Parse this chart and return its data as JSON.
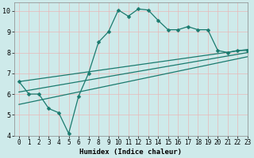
{
  "xlabel": "Humidex (Indice chaleur)",
  "background_color": "#ceeaea",
  "line_color": "#1a7a6e",
  "xlim": [
    -0.5,
    23
  ],
  "ylim": [
    4,
    10.4
  ],
  "xticks": [
    0,
    1,
    2,
    3,
    4,
    5,
    6,
    7,
    8,
    9,
    10,
    11,
    12,
    13,
    14,
    15,
    16,
    17,
    18,
    19,
    20,
    21,
    22,
    23
  ],
  "yticks": [
    4,
    5,
    6,
    7,
    8,
    9,
    10
  ],
  "wavy_series": {
    "x": [
      0,
      1,
      2,
      3,
      4,
      5,
      6,
      7,
      8,
      9,
      10,
      11,
      12,
      13,
      14,
      15,
      16,
      17,
      18,
      19,
      20,
      21,
      22,
      23
    ],
    "y": [
      6.6,
      6.0,
      6.0,
      5.3,
      5.1,
      4.1,
      5.9,
      7.0,
      8.5,
      9.0,
      10.05,
      9.75,
      10.1,
      10.05,
      9.55,
      9.1,
      9.1,
      9.25,
      9.1,
      9.1,
      8.1,
      8.0,
      8.1,
      8.1
    ]
  },
  "straight_lines": [
    {
      "x": [
        0,
        23
      ],
      "y": [
        6.6,
        8.15
      ]
    },
    {
      "x": [
        0,
        23
      ],
      "y": [
        6.1,
        8.0
      ]
    },
    {
      "x": [
        0,
        23
      ],
      "y": [
        5.5,
        7.8
      ]
    }
  ]
}
